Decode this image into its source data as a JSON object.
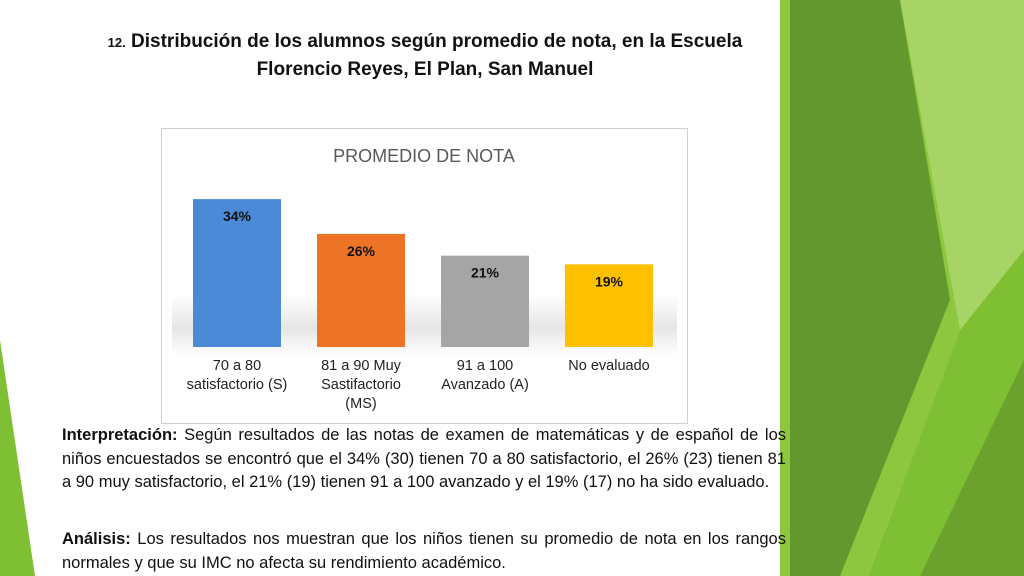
{
  "slide": {
    "title_number": "12.",
    "title_line1": "Distribución de los alumnos según promedio de nota, en la Escuela",
    "title_line2": "Florencio Reyes, El Plan, San Manuel",
    "interpretation_label": "Interpretación:",
    "interpretation_text": "Según resultados de las notas de examen de matemáticas y de español de los niños encuestados se encontró que el 34% (30) tienen 70 a 80 satisfactorio, el 26% (23) tienen 81 a 90 muy satisfactorio, el 21% (19) tienen 91 a 100 avanzado y el 19% (17) no ha sido evaluado.",
    "analysis_label": "Análisis:",
    "analysis_text": "Los resultados nos muestran que los niños tienen su promedio de nota en los rangos normales y que su IMC no afecta su rendimiento académico."
  },
  "theme": {
    "green_dark": "#5b8f2a",
    "green_mid": "#7fbf34",
    "green_light": "#c9e39a"
  },
  "chart_data": {
    "type": "bar",
    "title": "PROMEDIO DE NOTA",
    "categories": [
      [
        "70 a 80",
        "satisfactorio (S)"
      ],
      [
        "81 a 90 Muy",
        "Sastifactorio",
        "(MS)"
      ],
      [
        "91 a 100",
        "Avanzado (A)"
      ],
      [
        "No evaluado"
      ]
    ],
    "values": [
      34,
      26,
      21,
      19
    ],
    "data_labels": [
      "34%",
      "26%",
      "21%",
      "19%"
    ],
    "colors": [
      "#4a8ad6",
      "#ed7426",
      "#a5a5a5",
      "#ffc000"
    ],
    "ylim": [
      0,
      40
    ],
    "grid": false,
    "legend": "none"
  }
}
